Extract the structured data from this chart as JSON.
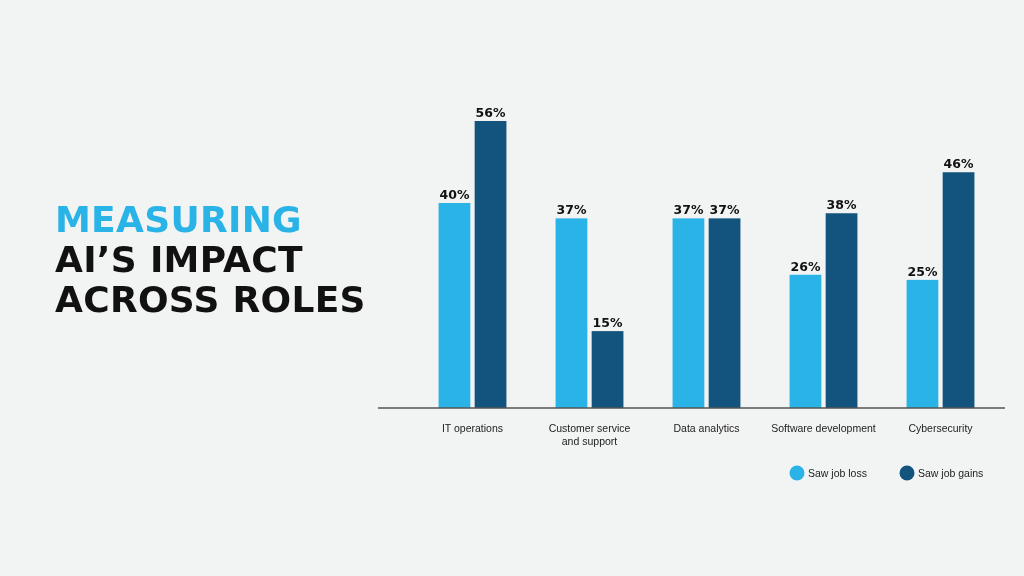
{
  "chart_data": {
    "type": "bar",
    "title": "MEASURING\nAI’S IMPACT\nACROSS ROLES",
    "categories": [
      "IT operations",
      "Customer service\nand support",
      "Data analytics",
      "Software development",
      "Cybersecurity"
    ],
    "series": [
      {
        "name": "Saw job loss",
        "color": "#29b3e6",
        "values": [
          40,
          37,
          37,
          26,
          25
        ],
        "value_labels": [
          "40%",
          "37%",
          "37%",
          "26%",
          "25%"
        ]
      },
      {
        "name": "Saw job gains",
        "color": "#13547f",
        "values": [
          56,
          15,
          37,
          38,
          46
        ],
        "value_labels": [
          "56%",
          "15%",
          "37%",
          "38%",
          "46%"
        ]
      }
    ],
    "legend": "bottom right"
  }
}
